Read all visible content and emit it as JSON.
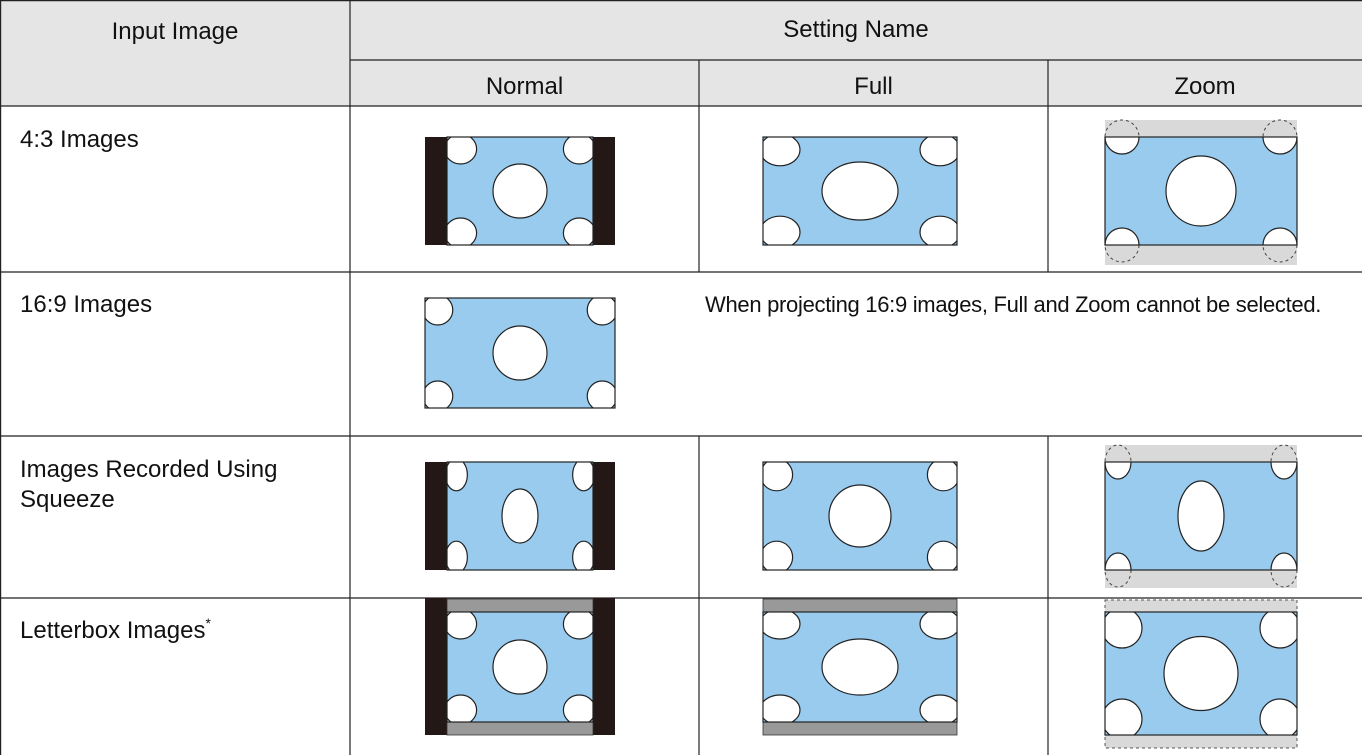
{
  "header": {
    "input_image": "Input Image",
    "setting_name": "Setting Name",
    "settings": [
      "Normal",
      "Full",
      "Zoom"
    ]
  },
  "rows": [
    {
      "label": "4:3 Images"
    },
    {
      "label": "16:9 Images",
      "note": "When projecting 16:9 images, Full and Zoom cannot be selected."
    },
    {
      "label": "Images Recorded Using Squeeze"
    },
    {
      "label": "Letterbox Images",
      "footnote": "*"
    }
  ]
}
